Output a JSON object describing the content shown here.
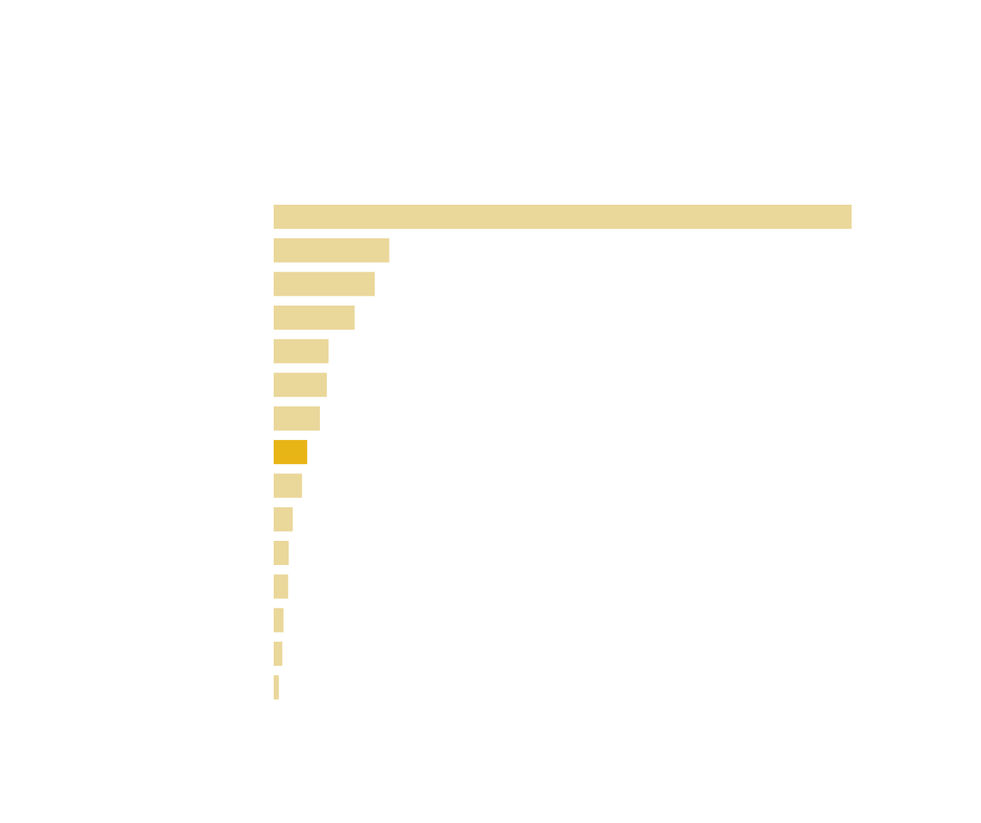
{
  "chart_data": {
    "type": "bar",
    "orientation": "horizontal",
    "values": [
      100,
      20,
      17.5,
      14,
      9.5,
      9.2,
      8,
      5.8,
      4.9,
      3.3,
      2.6,
      2.5,
      1.7,
      1.5,
      0.9
    ],
    "colors": [
      "#ead79a",
      "#ead79a",
      "#ead79a",
      "#ead79a",
      "#ead79a",
      "#ead79a",
      "#ead79a",
      "#e8b517",
      "#ead79a",
      "#ead79a",
      "#ead79a",
      "#ead79a",
      "#ead79a",
      "#ead79a",
      "#ead79a"
    ],
    "xlim": [
      0,
      100
    ]
  }
}
